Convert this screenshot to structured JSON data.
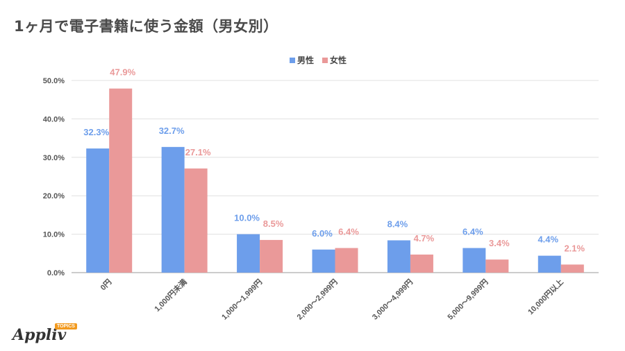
{
  "title": "1ヶ月で電子書籍に使う金額（男女別）",
  "logo": {
    "text": "Appliv",
    "badge": "TOPICS"
  },
  "colors": {
    "male": "#6d9eeb",
    "female": "#ea9999",
    "grid": "#e0e0e0",
    "axis_text": "#555555"
  },
  "chart_data": {
    "type": "bar",
    "categories": [
      "0円",
      "1,000円未満",
      "1,000〜1,999円",
      "2,000〜2,999円",
      "3,000〜4,999円",
      "5,000〜9,999円",
      "10,000円以上"
    ],
    "series": [
      {
        "name": "男性",
        "values": [
          32.3,
          32.7,
          10.0,
          6.0,
          8.4,
          6.4,
          4.4
        ],
        "labels": [
          "32.3%",
          "32.7%",
          "10.0%",
          "6.0%",
          "8.4%",
          "6.4%",
          "4.4%"
        ]
      },
      {
        "name": "女性",
        "values": [
          47.9,
          27.1,
          8.5,
          6.4,
          4.7,
          3.4,
          2.1
        ],
        "labels": [
          "47.9%",
          "27.1%",
          "8.5%",
          "6.4%",
          "4.7%",
          "3.4%",
          "2.1%"
        ]
      }
    ],
    "yticks": [
      "0.0%",
      "10.0%",
      "20.0%",
      "30.0%",
      "40.0%",
      "50.0%"
    ],
    "ylim": [
      0,
      50
    ],
    "legend": "top-center",
    "grid": true
  }
}
